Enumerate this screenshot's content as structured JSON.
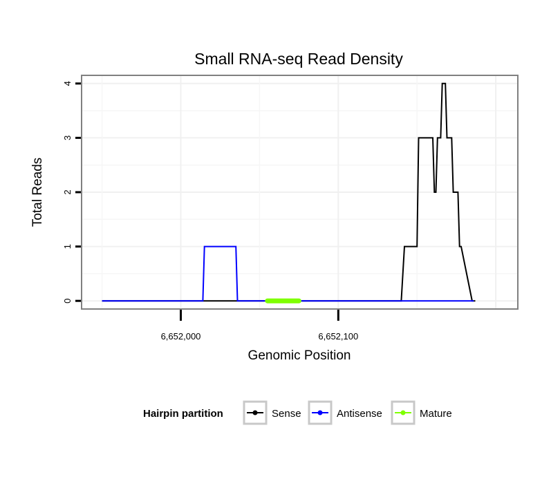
{
  "chart_data": {
    "type": "line",
    "title": "Small RNA-seq Read Density",
    "xlabel": "Genomic Position",
    "ylabel": "Total Reads",
    "xlim": [
      6651937,
      6652214
    ],
    "ylim": [
      -0.15,
      4.15
    ],
    "x_ticks": [
      6652000,
      6652100
    ],
    "x_tick_labels": [
      "6,652,000",
      "6,652,100"
    ],
    "y_ticks": [
      0,
      1,
      2,
      3,
      4
    ],
    "y_tick_labels": [
      "0",
      "1",
      "2",
      "3",
      "4"
    ],
    "grid": true,
    "legend": {
      "title": "Hairpin partition",
      "position": "bottom",
      "entries": [
        "Sense",
        "Antisense",
        "Mature"
      ]
    },
    "series": [
      {
        "name": "Sense",
        "color": "#000000",
        "x": [
          6651950,
          6652140,
          6652142,
          6652150,
          6652151,
          6652160,
          6652161,
          6652162,
          6652163,
          6652165,
          6652166,
          6652168,
          6652169,
          6652172,
          6652173,
          6652176,
          6652177,
          6652178,
          6652185,
          6652186,
          6652187
        ],
        "y": [
          0,
          0,
          1,
          1,
          3,
          3,
          2,
          2,
          3,
          3,
          4,
          4,
          3,
          3,
          2,
          2,
          1,
          1,
          0,
          0,
          0
        ]
      },
      {
        "name": "Antisense",
        "color": "#0000ff",
        "x": [
          6651950,
          6652014,
          6652015,
          6652035,
          6652036,
          6652140,
          6652186
        ],
        "y": [
          0,
          0,
          1,
          1,
          0,
          0,
          0
        ]
      },
      {
        "name": "Mature",
        "color": "#7fff00",
        "x": [
          6652055,
          6652075
        ],
        "y": [
          0,
          0
        ]
      }
    ]
  }
}
